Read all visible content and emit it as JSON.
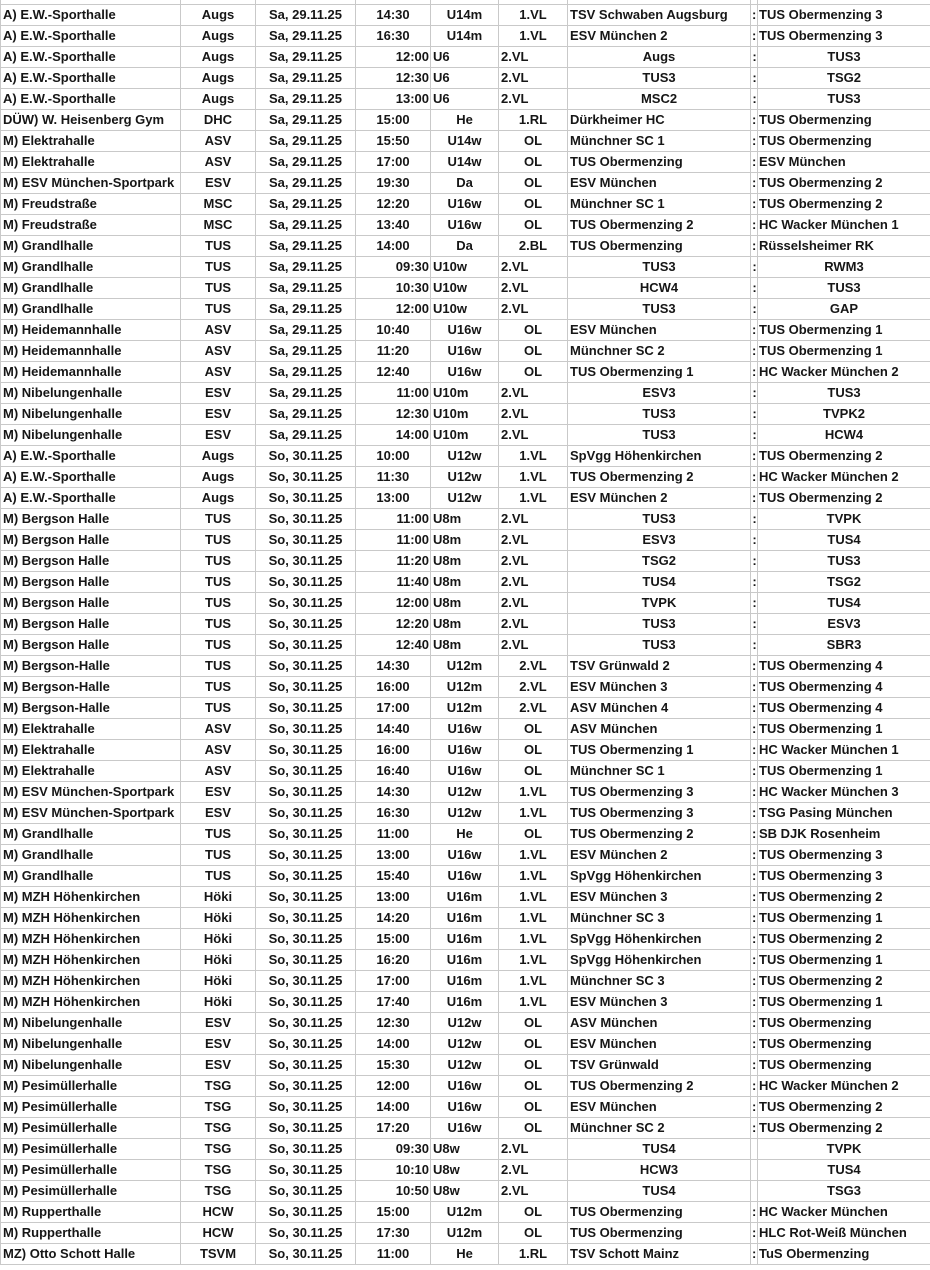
{
  "sheet": {
    "rows": [
      [
        "A) E.W.-Sporthalle",
        "Augs",
        "Sa, 29.11.25",
        "14:30",
        "U14m",
        "1.VL",
        "TSV Schwaben Augsburg",
        ":",
        "TUS Obermenzing 3"
      ],
      [
        "A) E.W.-Sporthalle",
        "Augs",
        "Sa, 29.11.25",
        "16:30",
        "U14m",
        "1.VL",
        "ESV München 2",
        ":",
        "TUS Obermenzing 3"
      ],
      [
        "A) E.W.-Sporthalle",
        "Augs",
        "Sa, 29.11.25",
        "12:00",
        "U6",
        "2.VL",
        "Augs",
        ":",
        "TUS3"
      ],
      [
        "A) E.W.-Sporthalle",
        "Augs",
        "Sa, 29.11.25",
        "12:30",
        "U6",
        "2.VL",
        "TUS3",
        ":",
        "TSG2"
      ],
      [
        "A) E.W.-Sporthalle",
        "Augs",
        "Sa, 29.11.25",
        "13:00",
        "U6",
        "2.VL",
        "MSC2",
        ":",
        "TUS3"
      ],
      [
        "DÜW) W. Heisenberg Gym",
        "DHC",
        "Sa, 29.11.25",
        "15:00",
        "He",
        "1.RL",
        "Dürkheimer HC",
        ":",
        "TUS Obermenzing"
      ],
      [
        "M) Elektrahalle",
        "ASV",
        "Sa, 29.11.25",
        "15:50",
        "U14w",
        "OL",
        "Münchner SC 1",
        ":",
        "TUS Obermenzing"
      ],
      [
        "M) Elektrahalle",
        "ASV",
        "Sa, 29.11.25",
        "17:00",
        "U14w",
        "OL",
        "TUS Obermenzing",
        ":",
        "ESV München"
      ],
      [
        "M) ESV München-Sportpark",
        "ESV",
        "Sa, 29.11.25",
        "19:30",
        "Da",
        "OL",
        "ESV München",
        ":",
        "TUS Obermenzing 2"
      ],
      [
        "M) Freudstraße",
        "MSC",
        "Sa, 29.11.25",
        "12:20",
        "U16w",
        "OL",
        "Münchner SC 1",
        ":",
        "TUS Obermenzing 2"
      ],
      [
        "M) Freudstraße",
        "MSC",
        "Sa, 29.11.25",
        "13:40",
        "U16w",
        "OL",
        "TUS Obermenzing 2",
        ":",
        "HC Wacker München 1"
      ],
      [
        "M) Grandlhalle",
        "TUS",
        "Sa, 29.11.25",
        "14:00",
        "Da",
        "2.BL",
        "TUS Obermenzing",
        ":",
        "Rüsselsheimer RK"
      ],
      [
        "M) Grandlhalle",
        "TUS",
        "Sa, 29.11.25",
        "09:30",
        "U10w",
        "2.VL",
        "TUS3",
        ":",
        "RWM3"
      ],
      [
        "M) Grandlhalle",
        "TUS",
        "Sa, 29.11.25",
        "10:30",
        "U10w",
        "2.VL",
        "HCW4",
        ":",
        "TUS3"
      ],
      [
        "M) Grandlhalle",
        "TUS",
        "Sa, 29.11.25",
        "12:00",
        "U10w",
        "2.VL",
        "TUS3",
        ":",
        "GAP"
      ],
      [
        "M) Heidemannhalle",
        "ASV",
        "Sa, 29.11.25",
        "10:40",
        "U16w",
        "OL",
        "ESV München",
        ":",
        "TUS Obermenzing 1"
      ],
      [
        "M) Heidemannhalle",
        "ASV",
        "Sa, 29.11.25",
        "11:20",
        "U16w",
        "OL",
        "Münchner SC 2",
        ":",
        "TUS Obermenzing 1"
      ],
      [
        "M) Heidemannhalle",
        "ASV",
        "Sa, 29.11.25",
        "12:40",
        "U16w",
        "OL",
        "TUS Obermenzing 1",
        ":",
        "HC Wacker München 2"
      ],
      [
        "M) Nibelungenhalle",
        "ESV",
        "Sa, 29.11.25",
        "11:00",
        "U10m",
        "2.VL",
        "ESV3",
        ":",
        "TUS3"
      ],
      [
        "M) Nibelungenhalle",
        "ESV",
        "Sa, 29.11.25",
        "12:30",
        "U10m",
        "2.VL",
        "TUS3",
        ":",
        "TVPK2"
      ],
      [
        "M) Nibelungenhalle",
        "ESV",
        "Sa, 29.11.25",
        "14:00",
        "U10m",
        "2.VL",
        "TUS3",
        ":",
        "HCW4"
      ],
      [
        "A) E.W.-Sporthalle",
        "Augs",
        "So, 30.11.25",
        "10:00",
        "U12w",
        "1.VL",
        "SpVgg Höhenkirchen",
        ":",
        "TUS Obermenzing 2"
      ],
      [
        "A) E.W.-Sporthalle",
        "Augs",
        "So, 30.11.25",
        "11:30",
        "U12w",
        "1.VL",
        "TUS Obermenzing 2",
        ":",
        "HC Wacker München 2"
      ],
      [
        "A) E.W.-Sporthalle",
        "Augs",
        "So, 30.11.25",
        "13:00",
        "U12w",
        "1.VL",
        "ESV München 2",
        ":",
        "TUS Obermenzing 2"
      ],
      [
        "M) Bergson Halle",
        "TUS",
        "So, 30.11.25",
        "11:00",
        "U8m",
        "2.VL",
        "TUS3",
        ":",
        "TVPK"
      ],
      [
        "M) Bergson Halle",
        "TUS",
        "So, 30.11.25",
        "11:00",
        "U8m",
        "2.VL",
        "ESV3",
        ":",
        "TUS4"
      ],
      [
        "M) Bergson Halle",
        "TUS",
        "So, 30.11.25",
        "11:20",
        "U8m",
        "2.VL",
        "TSG2",
        ":",
        "TUS3"
      ],
      [
        "M) Bergson Halle",
        "TUS",
        "So, 30.11.25",
        "11:40",
        "U8m",
        "2.VL",
        "TUS4",
        ":",
        "TSG2"
      ],
      [
        "M) Bergson Halle",
        "TUS",
        "So, 30.11.25",
        "12:00",
        "U8m",
        "2.VL",
        "TVPK",
        ":",
        "TUS4"
      ],
      [
        "M) Bergson Halle",
        "TUS",
        "So, 30.11.25",
        "12:20",
        "U8m",
        "2.VL",
        "TUS3",
        ":",
        "ESV3"
      ],
      [
        "M) Bergson Halle",
        "TUS",
        "So, 30.11.25",
        "12:40",
        "U8m",
        "2.VL",
        "TUS3",
        ":",
        "SBR3"
      ],
      [
        "M) Bergson-Halle",
        "TUS",
        "So, 30.11.25",
        "14:30",
        "U12m",
        "2.VL",
        "TSV Grünwald 2",
        ":",
        "TUS Obermenzing 4"
      ],
      [
        "M) Bergson-Halle",
        "TUS",
        "So, 30.11.25",
        "16:00",
        "U12m",
        "2.VL",
        "ESV München 3",
        ":",
        "TUS Obermenzing 4"
      ],
      [
        "M) Bergson-Halle",
        "TUS",
        "So, 30.11.25",
        "17:00",
        "U12m",
        "2.VL",
        "ASV München 4",
        ":",
        "TUS Obermenzing 4"
      ],
      [
        "M) Elektrahalle",
        "ASV",
        "So, 30.11.25",
        "14:40",
        "U16w",
        "OL",
        "ASV München",
        ":",
        "TUS Obermenzing 1"
      ],
      [
        "M) Elektrahalle",
        "ASV",
        "So, 30.11.25",
        "16:00",
        "U16w",
        "OL",
        "TUS Obermenzing 1",
        ":",
        "HC Wacker München 1"
      ],
      [
        "M) Elektrahalle",
        "ASV",
        "So, 30.11.25",
        "16:40",
        "U16w",
        "OL",
        "Münchner SC 1",
        ":",
        "TUS Obermenzing 1"
      ],
      [
        "M) ESV München-Sportpark",
        "ESV",
        "So, 30.11.25",
        "14:30",
        "U12w",
        "1.VL",
        "TUS Obermenzing 3",
        ":",
        "HC Wacker München 3"
      ],
      [
        "M) ESV München-Sportpark",
        "ESV",
        "So, 30.11.25",
        "16:30",
        "U12w",
        "1.VL",
        "TUS Obermenzing 3",
        ":",
        "TSG Pasing München"
      ],
      [
        "M) Grandlhalle",
        "TUS",
        "So, 30.11.25",
        "11:00",
        "He",
        "OL",
        "TUS Obermenzing 2",
        ":",
        "SB DJK Rosenheim"
      ],
      [
        "M) Grandlhalle",
        "TUS",
        "So, 30.11.25",
        "13:00",
        "U16w",
        "1.VL",
        "ESV München 2",
        ":",
        "TUS Obermenzing 3"
      ],
      [
        "M) Grandlhalle",
        "TUS",
        "So, 30.11.25",
        "15:40",
        "U16w",
        "1.VL",
        "SpVgg Höhenkirchen",
        ":",
        "TUS Obermenzing 3"
      ],
      [
        "M) MZH Höhenkirchen",
        "Höki",
        "So, 30.11.25",
        "13:00",
        "U16m",
        "1.VL",
        "ESV München 3",
        ":",
        "TUS Obermenzing 2"
      ],
      [
        "M) MZH Höhenkirchen",
        "Höki",
        "So, 30.11.25",
        "14:20",
        "U16m",
        "1.VL",
        "Münchner SC 3",
        ":",
        "TUS Obermenzing 1"
      ],
      [
        "M) MZH Höhenkirchen",
        "Höki",
        "So, 30.11.25",
        "15:00",
        "U16m",
        "1.VL",
        "SpVgg Höhenkirchen",
        ":",
        "TUS Obermenzing 2"
      ],
      [
        "M) MZH Höhenkirchen",
        "Höki",
        "So, 30.11.25",
        "16:20",
        "U16m",
        "1.VL",
        "SpVgg Höhenkirchen",
        ":",
        "TUS Obermenzing 1"
      ],
      [
        "M) MZH Höhenkirchen",
        "Höki",
        "So, 30.11.25",
        "17:00",
        "U16m",
        "1.VL",
        "Münchner SC 3",
        ":",
        "TUS Obermenzing 2"
      ],
      [
        "M) MZH Höhenkirchen",
        "Höki",
        "So, 30.11.25",
        "17:40",
        "U16m",
        "1.VL",
        "ESV München 3",
        ":",
        "TUS Obermenzing 1"
      ],
      [
        "M) Nibelungenhalle",
        "ESV",
        "So, 30.11.25",
        "12:30",
        "U12w",
        "OL",
        "ASV München",
        ":",
        "TUS Obermenzing"
      ],
      [
        "M) Nibelungenhalle",
        "ESV",
        "So, 30.11.25",
        "14:00",
        "U12w",
        "OL",
        "ESV München",
        ":",
        "TUS Obermenzing"
      ],
      [
        "M) Nibelungenhalle",
        "ESV",
        "So, 30.11.25",
        "15:30",
        "U12w",
        "OL",
        "TSV Grünwald",
        ":",
        "TUS Obermenzing"
      ],
      [
        "M) Pesimüllerhalle",
        "TSG",
        "So, 30.11.25",
        "12:00",
        "U16w",
        "OL",
        "TUS Obermenzing 2",
        ":",
        "HC Wacker München 2"
      ],
      [
        "M) Pesimüllerhalle",
        "TSG",
        "So, 30.11.25",
        "14:00",
        "U16w",
        "OL",
        "ESV München",
        ":",
        "TUS Obermenzing 2"
      ],
      [
        "M) Pesimüllerhalle",
        "TSG",
        "So, 30.11.25",
        "17:20",
        "U16w",
        "OL",
        "Münchner SC 2",
        ":",
        "TUS Obermenzing 2"
      ],
      [
        "M) Pesimüllerhalle",
        "TSG",
        "So, 30.11.25",
        "09:30",
        "U8w",
        "2.VL",
        "TUS4",
        "",
        "TVPK"
      ],
      [
        "M) Pesimüllerhalle",
        "TSG",
        "So, 30.11.25",
        "10:10",
        "U8w",
        "2.VL",
        "HCW3",
        "",
        "TUS4"
      ],
      [
        "M) Pesimüllerhalle",
        "TSG",
        "So, 30.11.25",
        "10:50",
        "U8w",
        "2.VL",
        "TUS4",
        "",
        "TSG3"
      ],
      [
        "M) Rupperthalle",
        "HCW",
        "So, 30.11.25",
        "15:00",
        "U12m",
        "OL",
        "TUS Obermenzing",
        ":",
        "HC Wacker München"
      ],
      [
        "M) Rupperthalle",
        "HCW",
        "So, 30.11.25",
        "17:30",
        "U12m",
        "OL",
        "TUS Obermenzing",
        ":",
        "HLC Rot-Weiß München"
      ],
      [
        "MZ) Otto Schott Halle",
        "TSVM",
        "So, 30.11.25",
        "11:00",
        "He",
        "1.RL",
        "TSV Schott Mainz",
        ":",
        "TuS Obermenzing"
      ]
    ]
  },
  "colors": {
    "grid": "#c9c9c9",
    "text": "#161616",
    "background": "#ffffff"
  }
}
